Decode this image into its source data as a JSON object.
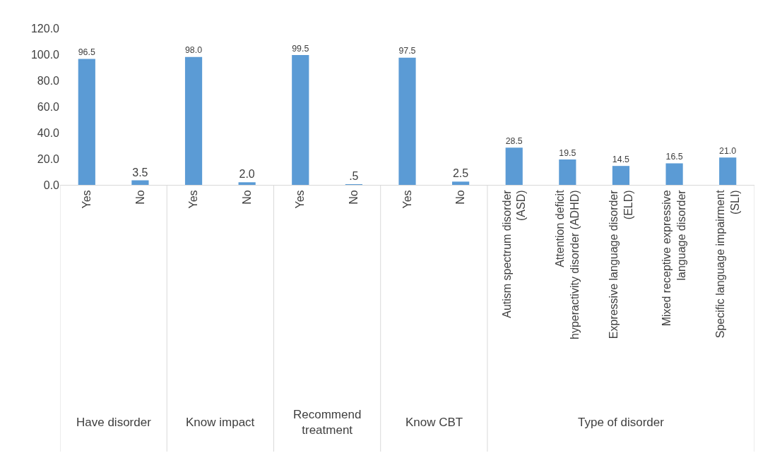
{
  "chart_data": {
    "type": "bar",
    "categories": [
      "Yes",
      "No",
      "Yes",
      "No",
      "Yes",
      "No",
      "Yes",
      "No",
      "Autism spectrum disorder (ASD)",
      "Attention deficit hyperactivity disorder (ADHD)",
      "Expressive language disorder (ELD)",
      "Mixed receptive expressive language disorder",
      "Specific language impairment (SLI)"
    ],
    "values": [
      96.5,
      3.5,
      98.0,
      2.0,
      99.5,
      0.5,
      97.5,
      2.5,
      28.5,
      19.5,
      14.5,
      16.5,
      21.0
    ],
    "value_labels": [
      "96.5",
      "3.5",
      "98.0",
      "2.0",
      "99.5",
      ".5",
      "97.5",
      "2.5",
      "28.5",
      "19.5",
      "14.5",
      "16.5",
      "21.0"
    ],
    "color": "#5b9bd5",
    "ylim": [
      0,
      120
    ],
    "yticks": [
      {
        "value": 0,
        "label": "0.0"
      },
      {
        "value": 20,
        "label": "20.0"
      },
      {
        "value": 40,
        "label": "40.0"
      },
      {
        "value": 60,
        "label": "60.0"
      },
      {
        "value": 80,
        "label": "80.0"
      },
      {
        "value": 100,
        "label": "100.0"
      },
      {
        "value": 120,
        "label": "120.0"
      }
    ],
    "grid": false,
    "legend": false,
    "annotations": [
      "Have disorder",
      "Know impact",
      "Recommend treatment",
      "Know CBT",
      "Type of disorder"
    ]
  }
}
